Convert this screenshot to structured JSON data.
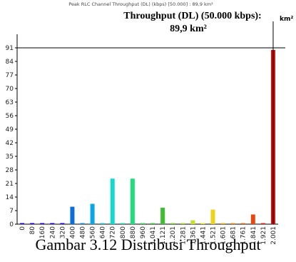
{
  "chart_data": {
    "type": "bar",
    "title": "Peak RLC Channel Throughput (DL) (kbps) [50.000] : 89,9 km²",
    "annotation_line1": "Throughput (DL) (50.000 kbps):",
    "annotation_line2": "89,9 km²",
    "unit": "km²",
    "xlabel": "",
    "ylabel": "",
    "ylim": [
      0,
      98
    ],
    "y_ticks": [
      0,
      7,
      14,
      21,
      28,
      35,
      42,
      49,
      56,
      63,
      70,
      77,
      84,
      91
    ],
    "categories": [
      "0",
      "80",
      "160",
      "240",
      "320",
      "400",
      "480",
      "560",
      "640",
      "720",
      "800",
      "880",
      "960",
      "1.041",
      "1.121",
      "1.201",
      "1.281",
      "1.361",
      "1.441",
      "1.521",
      "1.601",
      "1.681",
      "1.761",
      "1.841",
      "1.921",
      "2.001"
    ],
    "values": [
      0,
      0,
      0,
      0,
      0,
      9,
      0,
      10.5,
      0,
      23.5,
      0,
      23.5,
      0,
      0,
      8.5,
      0,
      0,
      2,
      0,
      7.5,
      0,
      0,
      0,
      5,
      0,
      89.9
    ],
    "bar_colors": [
      "#1a00d6",
      "#1a00d6",
      "#1a00d6",
      "#1a00d6",
      "#1a00d6",
      "#0a6fd8",
      "#0a8ee0",
      "#0aa7e6",
      "#10c2e6",
      "#12d9d0",
      "#14dca6",
      "#1ede7c",
      "#30d85a",
      "#3cc63c",
      "#3cbf32",
      "#7cd22c",
      "#a6d82a",
      "#c8df2a",
      "#e6e022",
      "#ecd21a",
      "#eeb018",
      "#ec8e16",
      "#e86a14",
      "#e24a12",
      "#d8281a",
      "#cc1414"
    ],
    "grid": false,
    "ref_line": 91
  },
  "caption": "Gambar 3.12 Distribusi Throughput"
}
